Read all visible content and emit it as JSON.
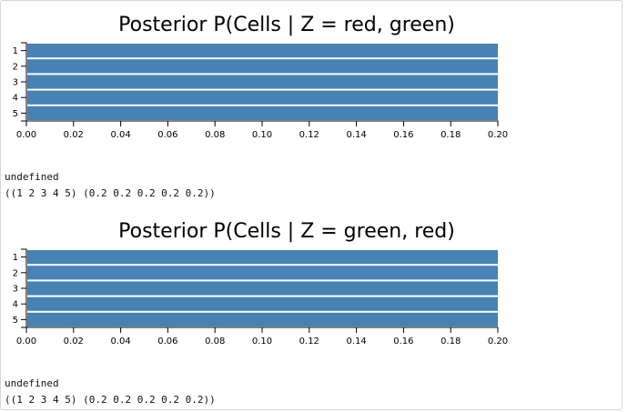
{
  "colors": {
    "bar": "#4682b4",
    "axis": "#000000",
    "text": "#000000"
  },
  "outputs": [
    {
      "result": "undefined",
      "value": "((1 2 3 4 5) (0.2 0.2 0.2 0.2 0.2))"
    },
    {
      "result": "undefined",
      "value": "((1 2 3 4 5) (0.2 0.2 0.2 0.2 0.2))"
    }
  ],
  "chart_data": [
    {
      "type": "bar",
      "orientation": "horizontal",
      "title": "Posterior P(Cells | Z = red, green)",
      "categories": [
        "1",
        "2",
        "3",
        "4",
        "5"
      ],
      "values": [
        0.2,
        0.2,
        0.2,
        0.2,
        0.2
      ],
      "xlim": [
        0,
        0.2
      ],
      "xticks": [
        "0.00",
        "0.02",
        "0.04",
        "0.06",
        "0.08",
        "0.10",
        "0.12",
        "0.14",
        "0.16",
        "0.18",
        "0.20"
      ],
      "grid": false
    },
    {
      "type": "bar",
      "orientation": "horizontal",
      "title": "Posterior P(Cells | Z = green, red)",
      "categories": [
        "1",
        "2",
        "3",
        "4",
        "5"
      ],
      "values": [
        0.2,
        0.2,
        0.2,
        0.2,
        0.2
      ],
      "xlim": [
        0,
        0.2
      ],
      "xticks": [
        "0.00",
        "0.02",
        "0.04",
        "0.06",
        "0.08",
        "0.10",
        "0.12",
        "0.14",
        "0.16",
        "0.18",
        "0.20"
      ],
      "grid": false
    }
  ]
}
